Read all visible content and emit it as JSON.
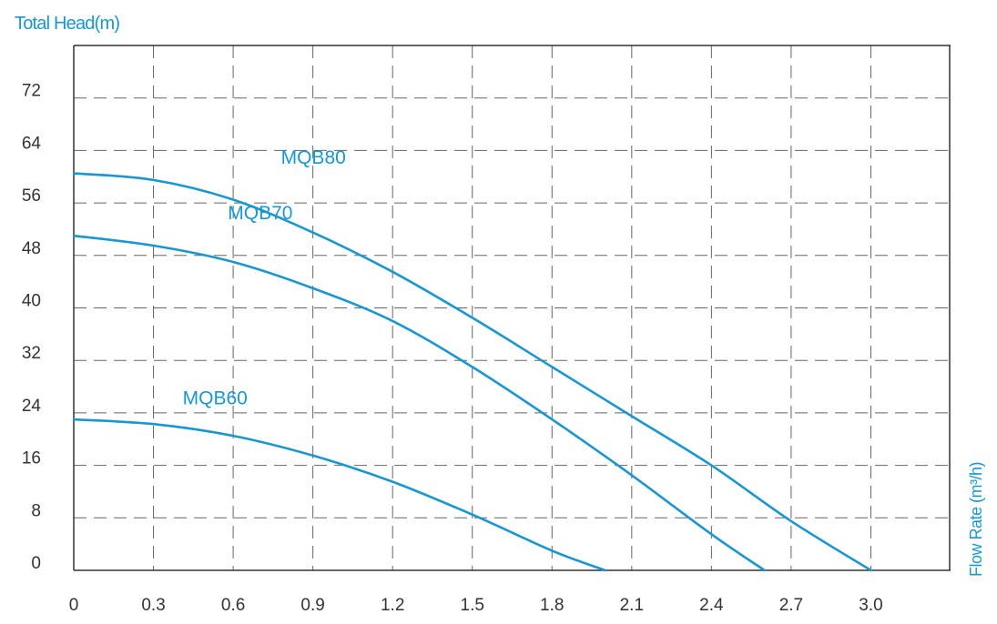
{
  "chart_data": {
    "type": "line",
    "title": "",
    "ylabel": "Total Head(m)",
    "xlabel": "Flow Rate (m³/h)",
    "xlim": [
      0,
      3.3
    ],
    "ylim": [
      0,
      80
    ],
    "x_ticks": [
      "0",
      "0.3",
      "0.6",
      "0.9",
      "1.2",
      "1.5",
      "1.8",
      "2.1",
      "2.4",
      "2.7",
      "3.0"
    ],
    "y_ticks": [
      "0",
      "8",
      "16",
      "24",
      "32",
      "40",
      "48",
      "56",
      "64",
      "72"
    ],
    "grid": true,
    "colors": {
      "series": "#1a96d0",
      "axis": "#333333",
      "grid": "#666666",
      "label": "#1a96d0"
    },
    "series": [
      {
        "name": "MQB80",
        "x": [
          0,
          0.3,
          0.6,
          0.9,
          1.2,
          1.5,
          1.8,
          2.1,
          2.4,
          2.7,
          3.0
        ],
        "y": [
          60.5,
          59.5,
          56.5,
          51.5,
          45.5,
          38.5,
          31,
          23.5,
          16,
          7.5,
          0
        ]
      },
      {
        "name": "MQB70",
        "x": [
          0,
          0.3,
          0.6,
          0.9,
          1.2,
          1.5,
          1.8,
          2.1,
          2.4,
          2.6
        ],
        "y": [
          51,
          49.5,
          47,
          43,
          38,
          31,
          23,
          14.5,
          5.5,
          0
        ]
      },
      {
        "name": "MQB60",
        "x": [
          0,
          0.3,
          0.6,
          0.9,
          1.2,
          1.5,
          1.8,
          2.0
        ],
        "y": [
          23,
          22.3,
          20.5,
          17.5,
          13.5,
          8.5,
          3,
          0
        ]
      }
    ]
  }
}
